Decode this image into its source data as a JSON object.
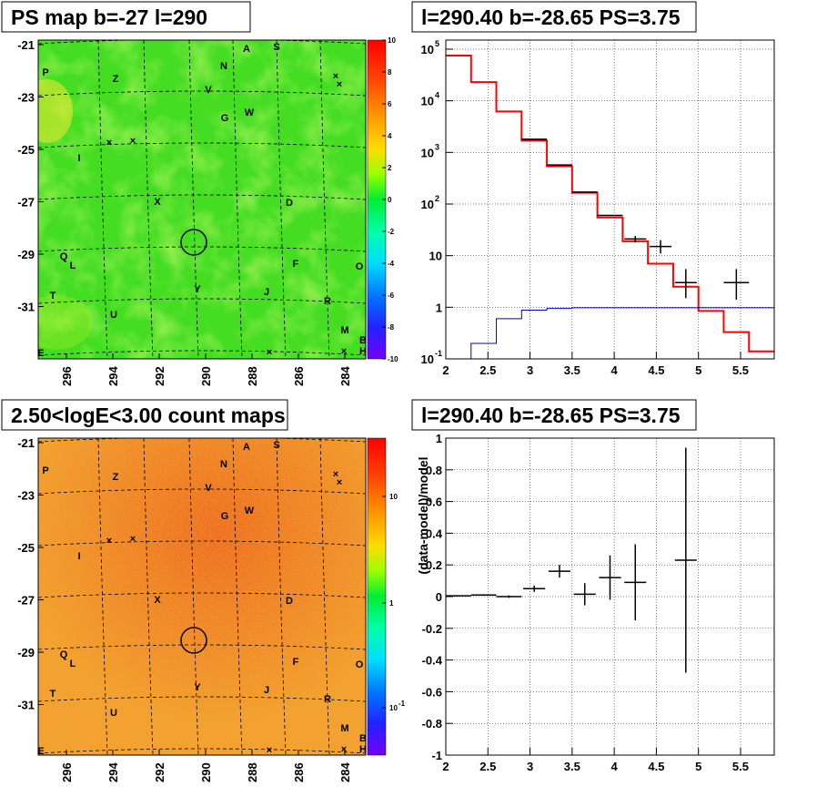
{
  "panels": {
    "ps_map": {
      "title": "PS map b=-27 l=290",
      "yticks": [
        "-21",
        "-23",
        "-25",
        "-27",
        "-29",
        "-31"
      ],
      "xticks": [
        "296",
        "294",
        "292",
        "290",
        "288",
        "286",
        "284"
      ],
      "zticks": [
        "10",
        "8",
        "6",
        "4",
        "2",
        "0",
        "-2",
        "-4",
        "-6",
        "-8",
        "-10"
      ]
    },
    "count_map": {
      "title": "2.50<logE<3.00 count maps",
      "yticks": [
        "-21",
        "-23",
        "-25",
        "-27",
        "-29",
        "-31"
      ],
      "xticks": [
        "296",
        "294",
        "292",
        "290",
        "288",
        "286",
        "284"
      ],
      "zticks": [
        "10",
        "1",
        "10"
      ],
      "zticks_exp": [
        "",
        "",
        "-1"
      ]
    },
    "source_labels": [
      "A",
      "S",
      "N",
      "Z",
      "P",
      "V",
      "G",
      "W",
      "I",
      "X",
      "D",
      "Q",
      "L",
      "F",
      "O",
      "T",
      "Y",
      "J",
      "R",
      "U",
      "M",
      "E",
      "B",
      "H"
    ]
  },
  "chart_data": [
    {
      "type": "line",
      "title": "l=290.40 b=-28.65 PS=3.75",
      "xlabel": "",
      "ylabel": "",
      "xlim": [
        2,
        5.9
      ],
      "ylim": [
        0.1,
        150000
      ],
      "yscale": "log",
      "grid": true,
      "xticks": [
        "2",
        "2.5",
        "3",
        "3.5",
        "4",
        "4.5",
        "5",
        "5.5"
      ],
      "yticks": [
        {
          "base": "10",
          "exp": "5"
        },
        {
          "base": "10",
          "exp": "4"
        },
        {
          "base": "10",
          "exp": "3"
        },
        {
          "base": "10",
          "exp": "2"
        },
        {
          "base": "10",
          "exp": ""
        },
        {
          "base": "1",
          "exp": ""
        },
        {
          "base": "10",
          "exp": "-1"
        }
      ],
      "bin_edges": [
        2.0,
        2.3,
        2.6,
        2.9,
        3.2,
        3.5,
        3.8,
        4.1,
        4.4,
        4.7,
        5.0,
        5.3,
        5.6,
        5.9
      ],
      "series": [
        {
          "role": "model (total)",
          "color": "#ff0000",
          "values": [
            75000,
            23000,
            6200,
            1700,
            540,
            165,
            55,
            19,
            7,
            2.5,
            0.85,
            0.33,
            0.14
          ]
        },
        {
          "role": "background",
          "color": "#0000cc",
          "values": [
            0.1,
            0.2,
            0.6,
            0.88,
            0.95,
            0.98,
            0.98,
            0.98,
            0.98,
            0.98,
            0.98,
            0.98,
            0.98
          ]
        },
        {
          "role": "data",
          "color": "#000000",
          "points": [
            {
              "x": 3.05,
              "y": 1800,
              "xerr": 0.15
            },
            {
              "x": 3.35,
              "y": 570,
              "xerr": 0.15
            },
            {
              "x": 3.65,
              "y": 170,
              "xerr": 0.15
            },
            {
              "x": 3.95,
              "y": 60,
              "xerr": 0.15
            },
            {
              "x": 4.25,
              "y": 21,
              "xerr": 0.13,
              "yerr": [
                18,
                24
              ]
            },
            {
              "x": 4.55,
              "y": 15,
              "xerr": 0.13,
              "yerr": [
                11,
                20
              ]
            },
            {
              "x": 4.85,
              "y": 3,
              "xerr": 0.13,
              "yerr": [
                1.5,
                5.5
              ]
            },
            {
              "x": 5.45,
              "y": 3,
              "xerr": 0.15,
              "yerr": [
                1.4,
                5.5
              ]
            }
          ]
        }
      ]
    },
    {
      "type": "scatter",
      "title": "l=290.40 b=-28.65 PS=3.75",
      "xlabel": "",
      "ylabel": "(data-model)/model",
      "xlim": [
        2,
        5.9
      ],
      "ylim": [
        -1,
        1
      ],
      "grid": true,
      "xticks": [
        "2",
        "2.5",
        "3",
        "3.5",
        "4",
        "4.5",
        "5",
        "5.5"
      ],
      "yticks": [
        "1",
        "0.8",
        "0.6",
        "0.4",
        "0.2",
        "0",
        "-0.2",
        "-0.4",
        "-0.6",
        "-0.8",
        "-1"
      ],
      "points": [
        {
          "x": 2.15,
          "y": 0.005,
          "xerr": 0.15,
          "yerr": 0.003
        },
        {
          "x": 2.45,
          "y": 0.01,
          "xerr": 0.15,
          "yerr": 0.005
        },
        {
          "x": 2.75,
          "y": 0.0,
          "xerr": 0.15,
          "yerr": 0.008
        },
        {
          "x": 3.05,
          "y": 0.05,
          "xerr": 0.13,
          "yerr": 0.02
        },
        {
          "x": 3.35,
          "y": 0.16,
          "xerr": 0.13,
          "yerr": 0.04
        },
        {
          "x": 3.65,
          "y": 0.015,
          "xerr": 0.13,
          "yerr": 0.07
        },
        {
          "x": 3.95,
          "y": 0.12,
          "xerr": 0.13,
          "yerr": 0.14
        },
        {
          "x": 4.25,
          "y": 0.09,
          "xerr": 0.13,
          "yerr": 0.24
        },
        {
          "x": 4.85,
          "y": 0.23,
          "xerr": 0.13,
          "yerr": [
            0.71,
            0.71
          ]
        }
      ]
    }
  ]
}
